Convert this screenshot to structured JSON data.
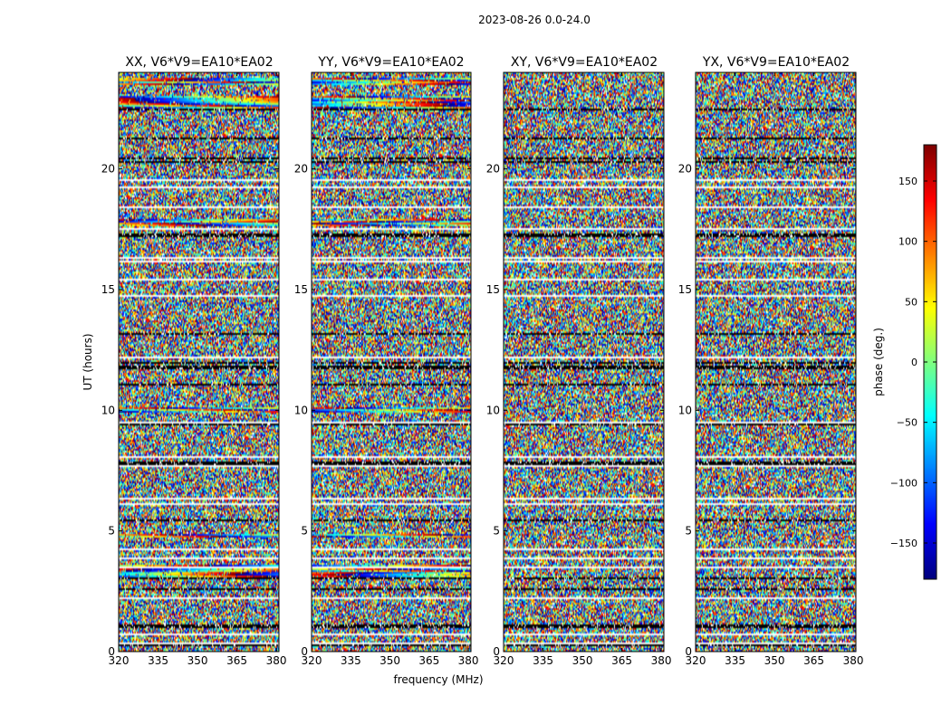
{
  "chart_data": {
    "type": "heatmap",
    "suptitle": "2023-08-26 0.0-24.0",
    "xlabel": "frequency (MHz)",
    "ylabel": "UT (hours)",
    "xlim": [
      320,
      381
    ],
    "ylim": [
      0,
      24
    ],
    "x_ticks": [
      "320",
      "335",
      "350",
      "365",
      "380"
    ],
    "x_tick_values": [
      320,
      335,
      350,
      365,
      380
    ],
    "y_ticks": [
      "0",
      "5",
      "10",
      "15",
      "20"
    ],
    "y_tick_values": [
      0,
      5,
      10,
      15,
      20
    ],
    "panels": [
      {
        "title": "XX, V6*V9=EA10*EA02",
        "pol": "XX"
      },
      {
        "title": "YY, V6*V9=EA10*EA02",
        "pol": "YY"
      },
      {
        "title": "XY, V6*V9=EA10*EA02",
        "pol": "XY"
      },
      {
        "title": "YX, V6*V9=EA10*EA02",
        "pol": "YX"
      }
    ],
    "colorbar": {
      "label": "phase (deg.)",
      "range": [
        -180,
        180
      ],
      "ticks": [
        "150",
        "100",
        "50",
        "0",
        "−50",
        "−100",
        "−150"
      ],
      "tick_values": [
        150,
        100,
        50,
        0,
        -50,
        -100,
        -150
      ],
      "colormap": "jet"
    },
    "flagged_ut_ranges": [
      [
        0.95,
        1.1
      ],
      [
        7.72,
        7.85
      ],
      [
        17.2,
        17.35
      ],
      [
        21.2,
        21.3
      ]
    ],
    "coherent_ut_bands_parallel": [
      [
        3.0,
        3.6
      ],
      [
        4.7,
        4.9
      ],
      [
        9.9,
        10.1
      ],
      [
        17.6,
        17.9
      ],
      [
        22.5,
        23.0
      ],
      [
        23.5,
        23.8
      ]
    ]
  }
}
